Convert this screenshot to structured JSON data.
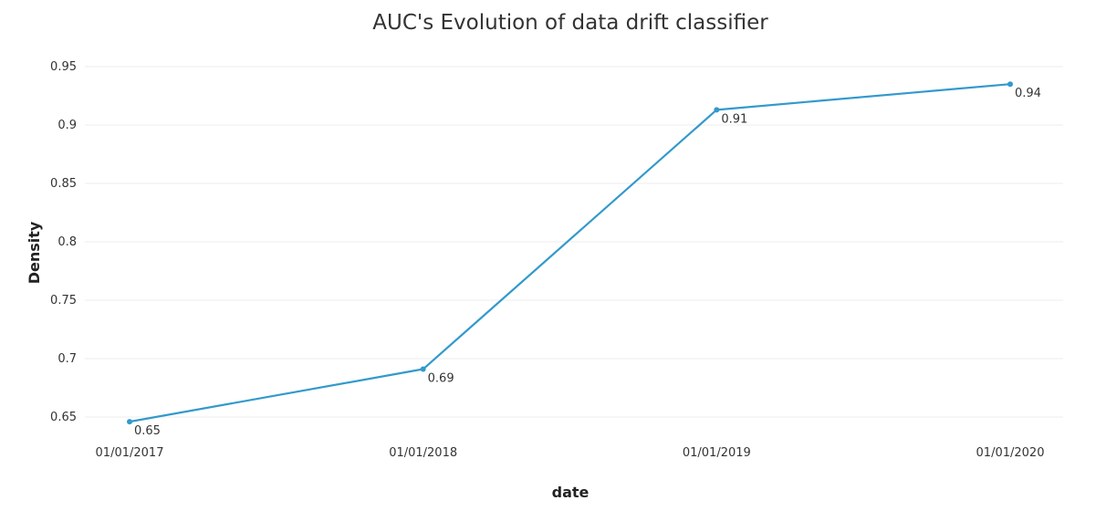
{
  "chart_data": {
    "type": "line",
    "title": "AUC's Evolution of data drift classifier",
    "xlabel": "date",
    "ylabel": "Density",
    "x": [
      "01/01/2017",
      "01/01/2018",
      "01/01/2019",
      "01/01/2020"
    ],
    "series": [
      {
        "values": [
          0.646,
          0.691,
          0.913,
          0.935
        ],
        "data_labels": [
          "0.65",
          "0.69",
          "0.91",
          "0.94"
        ]
      }
    ],
    "y_ticks": [
      "0.65",
      "0.7",
      "0.75",
      "0.8",
      "0.85",
      "0.9",
      "0.95"
    ],
    "y_tick_values": [
      0.65,
      0.7,
      0.75,
      0.8,
      0.85,
      0.9,
      0.95
    ],
    "ylim": [
      0.64,
      0.955
    ],
    "grid": true,
    "legend": "none",
    "colors": {
      "line": "#3399cc",
      "grid": "#eeeeee",
      "text": "#333333"
    }
  }
}
